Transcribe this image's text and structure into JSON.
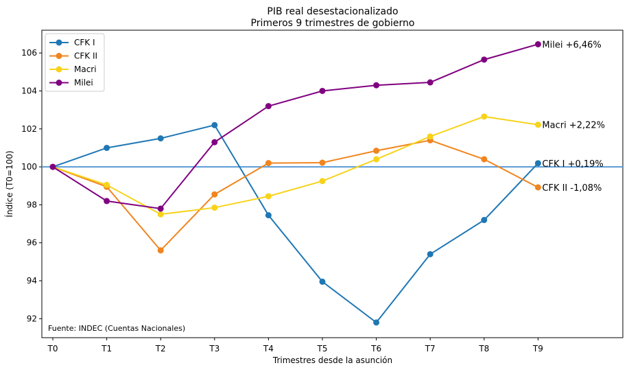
{
  "chart_data": {
    "type": "line",
    "title": "PIB real desestacionalizado",
    "subtitle": "Primeros 9 trimestres de gobierno",
    "xlabel": "Trimestres desde la asunción",
    "ylabel": "Índice (T0=100)",
    "categories": [
      "T0",
      "T1",
      "T2",
      "T3",
      "T4",
      "T5",
      "T6",
      "T7",
      "T8",
      "T9"
    ],
    "ylim": [
      91.0,
      107.2
    ],
    "yticks": [
      92,
      94,
      96,
      98,
      100,
      102,
      104,
      106
    ],
    "grid": false,
    "legend_position": "top-left",
    "reference_line": {
      "y": 100,
      "color": "#5b9bd5"
    },
    "series": [
      {
        "name": "CFK I",
        "color": "#1f77b4",
        "values": [
          100,
          101.0,
          101.5,
          102.2,
          97.45,
          93.95,
          91.8,
          95.4,
          97.2,
          100.19
        ],
        "end_label": "CFK I +0,19%"
      },
      {
        "name": "CFK II",
        "color": "#f0851f",
        "values": [
          100,
          98.95,
          95.6,
          98.55,
          100.2,
          100.22,
          100.85,
          101.4,
          100.4,
          98.92
        ],
        "end_label": "CFK II -1,08%"
      },
      {
        "name": "Macri",
        "color": "#f7d31a",
        "values": [
          100,
          99.05,
          97.5,
          97.85,
          98.45,
          99.25,
          100.4,
          101.6,
          102.65,
          102.22
        ],
        "end_label": "Macri +2,22%"
      },
      {
        "name": "Milei",
        "color": "#800080",
        "values": [
          100,
          98.2,
          97.8,
          101.3,
          103.2,
          104.0,
          104.3,
          104.45,
          105.65,
          106.46
        ],
        "end_label": "Milei +6,46%"
      }
    ],
    "annotation": "Fuente: INDEC (Cuentas Nacionales)"
  }
}
